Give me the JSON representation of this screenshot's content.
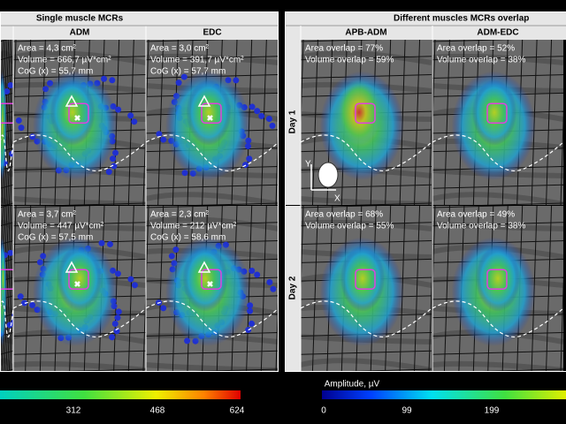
{
  "single": {
    "title": "Single muscle MCRs",
    "columns": [
      "ADM",
      "EDC"
    ],
    "panels": [
      [
        [
          "Area = 4,3 cm²",
          "Volume = 666,7 µV*cm²",
          "CoG (x) = 55,7 mm"
        ],
        [
          "Area = 3,0 cm²",
          "Volume = 391,7 µV*cm²",
          "CoG (x) = 57,7 mm"
        ]
      ],
      [
        [
          "Area = 3,7 cm²",
          "Volume = 447 µV*cm²",
          "CoG (x) = 57,5 mm"
        ],
        [
          "Area = 2,3 cm²",
          "Volume = 212 µV*cm²",
          "CoG (x) = 58,6 mm"
        ]
      ]
    ]
  },
  "overlap": {
    "title": "Different muscles MCRs overlap",
    "columns": [
      "APB-ADM",
      "ADM-EDC"
    ],
    "rows": [
      "Day 1",
      "Day 2"
    ],
    "panels": [
      [
        [
          "Area overlap = 77%",
          "Volume overlap = 59%"
        ],
        [
          "Area overlap = 52%",
          "Volume overlap = 38%"
        ]
      ],
      [
        [
          "Area overlap = 68%",
          "Volume overlap = 55%"
        ],
        [
          "Area overlap = 49%",
          "Volume overlap = 38%"
        ]
      ]
    ]
  },
  "axis_icon": {
    "y": "Y",
    "x": "X"
  },
  "colorbar_left": {
    "ticks": [
      312,
      468,
      624
    ]
  },
  "colorbar_right": {
    "label": "Amplitude, µV",
    "ticks": [
      0,
      99,
      199
    ]
  }
}
